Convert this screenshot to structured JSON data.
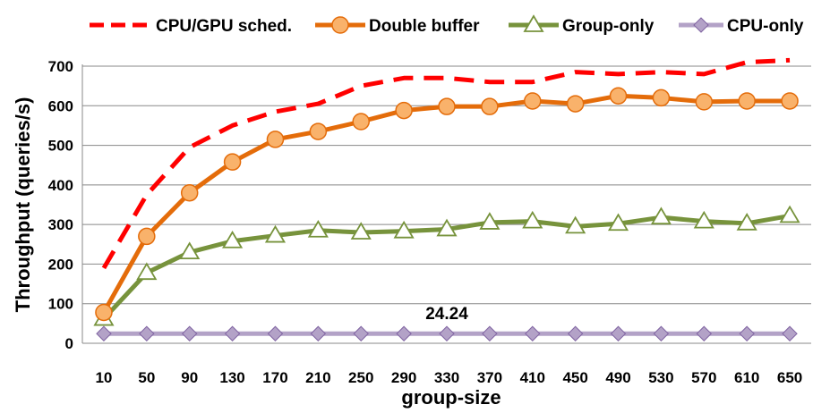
{
  "chart_data": {
    "type": "line",
    "title": "",
    "xlabel": "group-size",
    "ylabel": "Throughput (queries/s)",
    "categories": [
      "10",
      "50",
      "90",
      "130",
      "170",
      "210",
      "250",
      "290",
      "330",
      "370",
      "410",
      "450",
      "490",
      "530",
      "570",
      "610",
      "650"
    ],
    "ylim": [
      0,
      700
    ],
    "yticks": [
      0,
      100,
      200,
      300,
      400,
      500,
      600,
      700
    ],
    "grid": true,
    "legend_position": "top",
    "annotations": [
      {
        "text": "24.24",
        "category": "330",
        "value": 24.24
      }
    ],
    "series": [
      {
        "name": "CPU/GPU sched.",
        "color": "#ff0000",
        "style": "dashed",
        "marker": "none",
        "values": [
          190,
          375,
          495,
          550,
          585,
          605,
          650,
          670,
          670,
          660,
          660,
          685,
          680,
          685,
          680,
          710,
          715
        ]
      },
      {
        "name": "Double buffer",
        "color": "#e46c0a",
        "style": "solid",
        "marker": "circle",
        "values": [
          78,
          270,
          380,
          458,
          515,
          535,
          560,
          588,
          598,
          598,
          612,
          605,
          625,
          620,
          610,
          612,
          612
        ]
      },
      {
        "name": "Group-only",
        "color": "#77933c",
        "style": "solid",
        "marker": "triangle",
        "values": [
          62,
          178,
          230,
          258,
          272,
          285,
          280,
          283,
          288,
          305,
          308,
          295,
          302,
          318,
          308,
          303,
          322
        ]
      },
      {
        "name": "CPU-only",
        "color": "#b3a2c7",
        "style": "solid",
        "marker": "diamond",
        "values": [
          24.24,
          24.24,
          24.24,
          24.24,
          24.24,
          24.24,
          24.24,
          24.24,
          24.24,
          24.24,
          24.24,
          24.24,
          24.24,
          24.24,
          24.24,
          24.24,
          24.24
        ]
      }
    ]
  }
}
